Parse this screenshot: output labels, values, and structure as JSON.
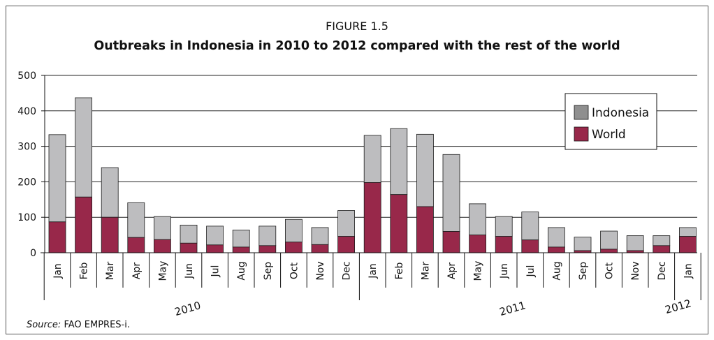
{
  "figure_label": "FIGURE 1.5",
  "source_label": "Source:",
  "source_text": "FAO EMPRES-i.",
  "colors": {
    "indonesia": "#bdbdbf",
    "world": "#98284a",
    "grid": "#222222",
    "legend_swatch_indonesia": "#8f8f8f"
  },
  "chart_data": {
    "type": "bar",
    "stacked": true,
    "title": "Outbreaks in Indonesia in 2010 to 2012 compared with the rest of the world",
    "xlabel": "",
    "ylabel": "",
    "ylim": [
      0,
      500
    ],
    "yticks": [
      0,
      100,
      200,
      300,
      400,
      500
    ],
    "grid": true,
    "legend_position": "top-right",
    "categories": [
      "Jan",
      "Feb",
      "Mar",
      "Apr",
      "May",
      "Jun",
      "Jul",
      "Aug",
      "Sep",
      "Oct",
      "Nov",
      "Dec",
      "Jan",
      "Feb",
      "Mar",
      "Apr",
      "May",
      "Jun",
      "Jul",
      "Aug",
      "Sep",
      "Oct",
      "Nov",
      "Dec",
      "Jan"
    ],
    "year_groups": [
      {
        "label": "2010",
        "start": 0,
        "end": 11
      },
      {
        "label": "2011",
        "start": 12,
        "end": 23
      },
      {
        "label": "2012",
        "start": 24,
        "end": 24
      }
    ],
    "series": [
      {
        "name": "World",
        "values": [
          87,
          157,
          100,
          43,
          37,
          27,
          22,
          16,
          20,
          30,
          23,
          46,
          198,
          164,
          130,
          60,
          50,
          46,
          36,
          16,
          6,
          10,
          6,
          20,
          46
        ]
      },
      {
        "name": "Indonesia",
        "values": [
          246,
          280,
          140,
          98,
          65,
          51,
          53,
          48,
          55,
          64,
          48,
          73,
          133,
          186,
          204,
          217,
          88,
          56,
          79,
          55,
          38,
          51,
          42,
          28,
          25
        ]
      }
    ],
    "legend": [
      "Indonesia",
      "World"
    ]
  }
}
